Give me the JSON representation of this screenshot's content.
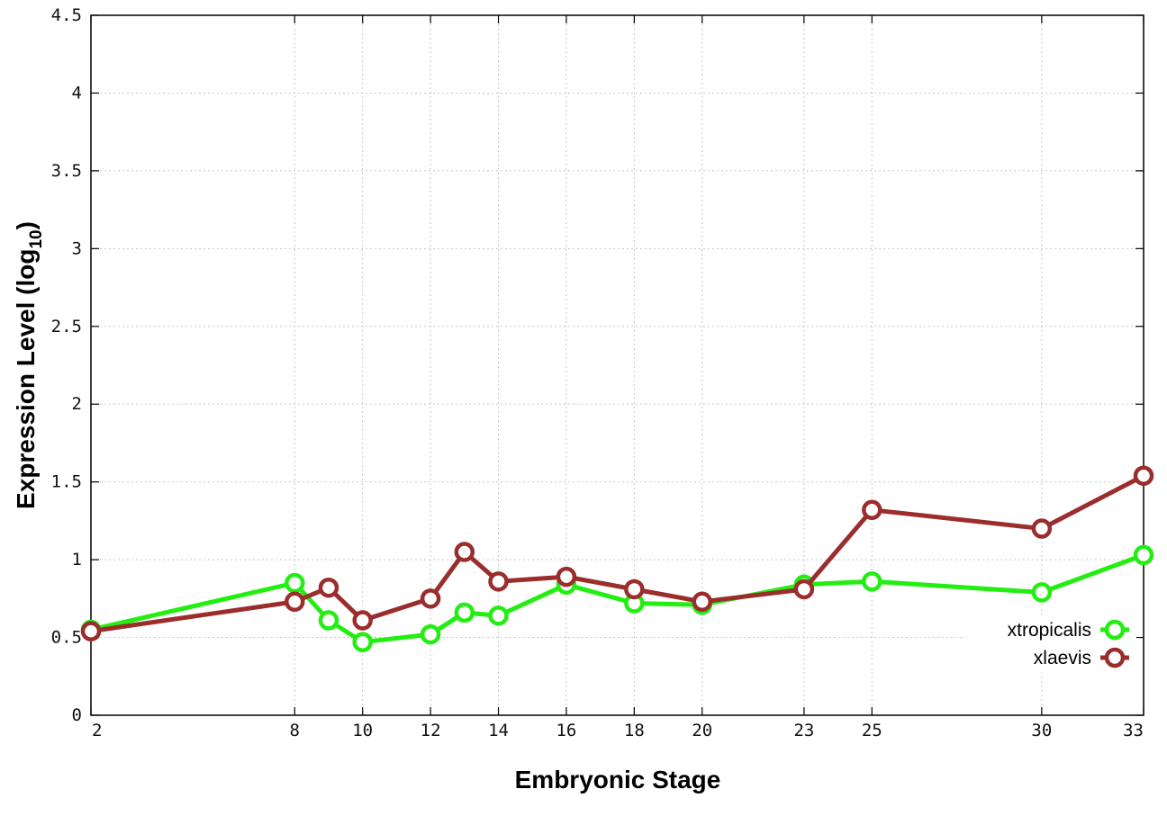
{
  "chart_data": {
    "type": "line",
    "xlabel": "Embryonic Stage",
    "ylabel_main": "Expression Level (log",
    "ylabel_sub": "10",
    "ylabel_close": ")",
    "xlim": [
      2,
      33
    ],
    "ylim": [
      0,
      4.5
    ],
    "x_ticks": [
      2,
      8,
      10,
      12,
      14,
      16,
      18,
      20,
      23,
      25,
      30,
      33
    ],
    "y_ticks": [
      {
        "value": 0,
        "label": "0"
      },
      {
        "value": 0.5,
        "label": "0.5"
      },
      {
        "value": 1,
        "label": "1"
      },
      {
        "value": 1.5,
        "label": "1.5"
      },
      {
        "value": 2,
        "label": "2"
      },
      {
        "value": 2.5,
        "label": "2.5"
      },
      {
        "value": 3,
        "label": "3"
      },
      {
        "value": 3.5,
        "label": "3.5"
      },
      {
        "value": 4,
        "label": "4"
      },
      {
        "value": 4.5,
        "label": "4.5"
      }
    ],
    "grid": true,
    "legend_position": "bottom-right",
    "x": [
      2,
      8,
      9,
      10,
      12,
      13,
      14,
      16,
      18,
      20,
      23,
      25,
      30,
      33
    ],
    "series": [
      {
        "name": "xtropicalis",
        "color": "#22ee11",
        "values": [
          0.55,
          0.85,
          0.61,
          0.47,
          0.52,
          0.66,
          0.64,
          0.84,
          0.72,
          0.71,
          0.84,
          0.86,
          0.79,
          1.03
        ]
      },
      {
        "name": "xlaevis",
        "color": "#9b2d2d",
        "values": [
          0.54,
          0.73,
          0.82,
          0.61,
          0.75,
          1.05,
          0.86,
          0.89,
          0.81,
          0.73,
          0.81,
          1.32,
          1.2,
          1.54
        ]
      }
    ]
  }
}
